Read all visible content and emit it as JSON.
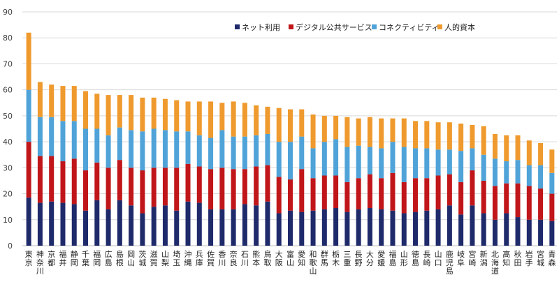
{
  "chart_data": {
    "type": "bar",
    "stacked": true,
    "ylim": [
      0,
      90
    ],
    "yticks": [
      0,
      10,
      20,
      30,
      40,
      50,
      60,
      70,
      80,
      90
    ],
    "grid": true,
    "legend_position": "top-right",
    "categories": [
      "東京",
      "神奈川",
      "京都",
      "福井",
      "静岡",
      "千葉",
      "福岡",
      "広島",
      "島根",
      "岡山",
      "茨城",
      "滋賀",
      "山梨",
      "埼玉",
      "沖縄",
      "兵庫",
      "佐賀",
      "香川",
      "奈良",
      "石川",
      "熊本",
      "鳥取",
      "大阪",
      "富山",
      "愛知",
      "和歌山",
      "群馬",
      "栃木",
      "三重",
      "長野",
      "大分",
      "愛媛",
      "福島",
      "山形",
      "徳島",
      "長崎",
      "山口",
      "鹿児島",
      "岐阜",
      "宮崎",
      "新潟",
      "北海道",
      "高知",
      "秋田",
      "岩手",
      "宮城",
      "青森"
    ],
    "series": [
      {
        "name": "ネット利用",
        "color": "#1f2a6b",
        "values": [
          18.5,
          16.5,
          17,
          16.5,
          16,
          13.5,
          17.5,
          14,
          17.5,
          15.5,
          12.5,
          15,
          15.5,
          13.5,
          17,
          16.5,
          14,
          14,
          14,
          16,
          15.5,
          17,
          12.5,
          13.5,
          13,
          13.5,
          14,
          14.5,
          13,
          14,
          14.5,
          14,
          13.5,
          12.5,
          13,
          13.5,
          14,
          15.5,
          12,
          15.5,
          12.5,
          10,
          12.5,
          11,
          10,
          10,
          9.5
        ]
      },
      {
        "name": "デジタル公共サービス",
        "color": "#c0161a",
        "values": [
          21.5,
          18,
          17.5,
          16,
          17.5,
          15.5,
          14.5,
          16,
          15.5,
          14.5,
          16.5,
          15,
          14.5,
          16.5,
          14.5,
          14,
          15.5,
          16,
          15.5,
          13.5,
          15,
          14,
          14,
          12,
          16.5,
          12.5,
          13,
          12.5,
          11.5,
          12,
          13,
          12,
          14.5,
          12,
          13,
          12.5,
          13,
          12,
          12.5,
          13.5,
          12.5,
          13,
          11.5,
          13,
          13,
          12,
          10.5
        ]
      },
      {
        "name": "コネクティビティ",
        "color": "#4fa3d8",
        "values": [
          20,
          15,
          15,
          15.5,
          14.5,
          16,
          13,
          12.5,
          12.5,
          14.5,
          15,
          15,
          14.5,
          14,
          12.5,
          12,
          12,
          14.5,
          12.5,
          12.5,
          12,
          12,
          13.5,
          14.5,
          12.5,
          11.5,
          13,
          14,
          13.5,
          12.5,
          10.5,
          11.5,
          12,
          13.5,
          11.5,
          11.5,
          10,
          9.5,
          12,
          8.5,
          10,
          10.5,
          8.5,
          9,
          8,
          9,
          8
        ]
      },
      {
        "name": "人的資本",
        "color": "#ef9a2e",
        "values": [
          22,
          13.5,
          12.5,
          13.5,
          13.5,
          14.5,
          13.5,
          15.5,
          12.5,
          13.5,
          13,
          12,
          12,
          12,
          11.5,
          13,
          14,
          10.5,
          13.5,
          13,
          11.5,
          10.5,
          13,
          12.5,
          10.5,
          13,
          10,
          9,
          11.5,
          10.5,
          11.5,
          11.5,
          9,
          11,
          10.5,
          10.5,
          10.5,
          10.5,
          10.5,
          9,
          11,
          9.5,
          10,
          9.5,
          9.5,
          8.5,
          9
        ]
      }
    ]
  }
}
